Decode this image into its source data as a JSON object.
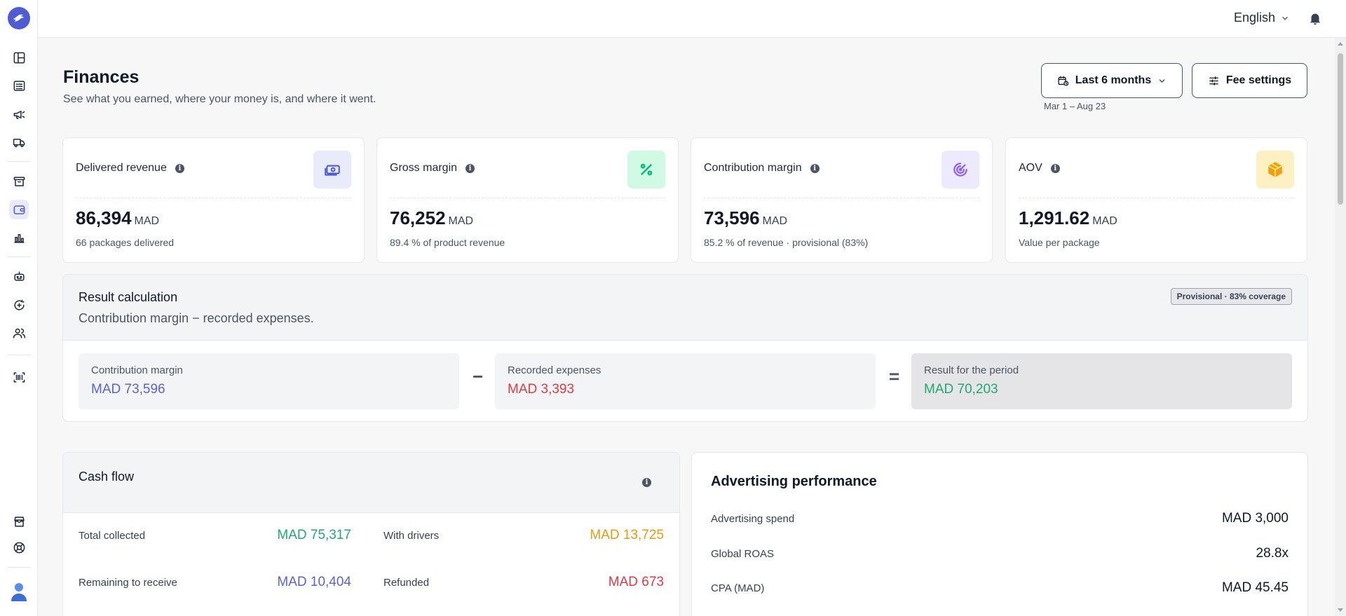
{
  "topbar": {
    "language": "English"
  },
  "header": {
    "title": "Finances",
    "subtitle": "See what you earned, where your money is, and where it went.",
    "range_button": "Last 6 months",
    "fee_button": "Fee settings",
    "range_dates": "Mar 1 – Aug 23"
  },
  "kpis": [
    {
      "label": "Delivered revenue",
      "value": "86,394",
      "unit": "MAD",
      "note": "66 packages delivered",
      "icon": "money-icon",
      "icon_color": "#4f5bd5",
      "icon_bg": "#e9ebfb"
    },
    {
      "label": "Gross margin",
      "value": "76,252",
      "unit": "MAD",
      "note": "89.4 % of product revenue",
      "icon": "percent-icon",
      "icon_color": "#10b981",
      "icon_bg": "#d1fae5"
    },
    {
      "label": "Contribution margin",
      "value": "73,596",
      "unit": "MAD",
      "note": "85.2 % of revenue · provisional (83%)",
      "icon": "target-icon",
      "icon_color": "#8b5cf6",
      "icon_bg": "#ede9fe"
    },
    {
      "label": "AOV",
      "value": "1,291.62",
      "unit": "MAD",
      "note": "Value per package",
      "icon": "package-icon",
      "icon_color": "#f59e0b",
      "icon_bg": "#fdf1c4"
    }
  ],
  "result": {
    "title": "Result calculation",
    "subtitle": "Contribution margin − recorded expenses.",
    "badge": "Provisional · 83% coverage",
    "minus": "−",
    "equals": "=",
    "items": [
      {
        "label": "Contribution margin",
        "value": "MAD 73,596",
        "color": "#5b63d3"
      },
      {
        "label": "Recorded expenses",
        "value": "MAD 3,393",
        "color": "#dc3d43"
      },
      {
        "label": "Result for the period",
        "value": "MAD 70,203",
        "color": "#1fa971"
      }
    ]
  },
  "cash_flow": {
    "title": "Cash flow",
    "items": [
      {
        "label": "Total collected",
        "value": "MAD 75,317",
        "color": "#1fa971"
      },
      {
        "label": "With drivers",
        "value": "MAD 13,725",
        "color": "#e89b10"
      },
      {
        "label": "Remaining to receive",
        "value": "MAD 10,404",
        "color": "#5b63d3"
      },
      {
        "label": "Refunded",
        "value": "MAD 673",
        "color": "#dc3d43"
      }
    ]
  },
  "advertising": {
    "title": "Advertising performance",
    "items": [
      {
        "label": "Advertising spend",
        "value": "MAD 3,000"
      },
      {
        "label": "Global ROAS",
        "value": "28.8x"
      },
      {
        "label": "CPA (MAD)",
        "value": "MAD 45.45"
      }
    ]
  },
  "sidebar": {
    "items": [
      {
        "icon": "dashboard-icon",
        "active": false
      },
      {
        "icon": "orders-list-icon",
        "active": false
      },
      {
        "icon": "megaphone-icon",
        "active": false
      },
      {
        "icon": "truck-icon",
        "active": false
      },
      {
        "icon": "archive-icon",
        "active": false
      },
      {
        "icon": "wallet-icon",
        "active": true
      },
      {
        "icon": "bar-chart-icon",
        "active": false
      },
      {
        "icon": "robot-icon",
        "active": false
      },
      {
        "icon": "refresh-plus-icon",
        "active": false
      },
      {
        "icon": "users-icon",
        "active": false
      },
      {
        "icon": "barcode-scan-icon",
        "active": false
      },
      {
        "icon": "store-icon",
        "active": false
      },
      {
        "icon": "support-icon",
        "active": false
      }
    ]
  },
  "colors": {
    "accent": "#4f5bd5"
  }
}
